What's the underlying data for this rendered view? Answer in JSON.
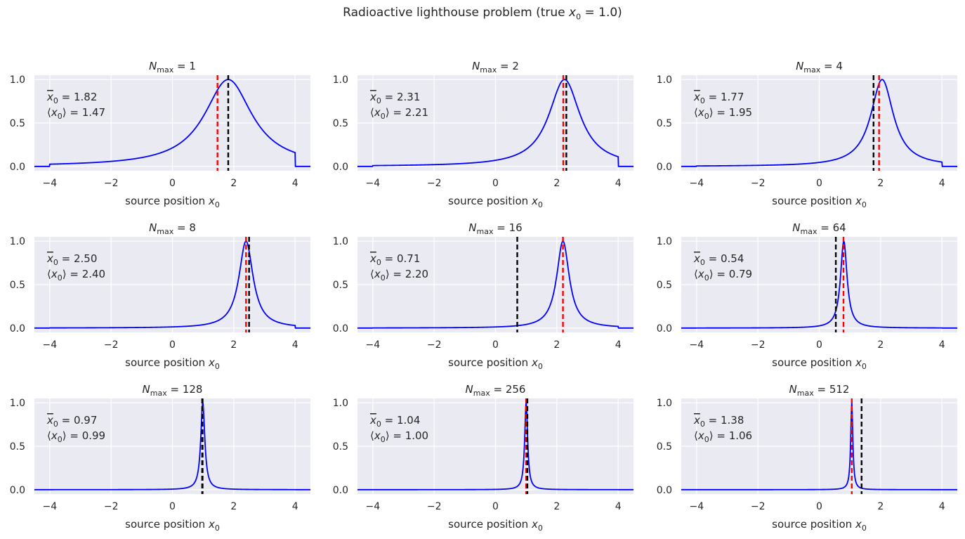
{
  "figure": {
    "title_prefix": "Radioactive lighthouse problem (true ",
    "title_var": "x",
    "title_sub": "0",
    "title_suffix": " = 1.0)"
  },
  "colors": {
    "background": "#eaeaf2",
    "grid": "#ffffff",
    "posterior": "#0000ff",
    "mean_line": "#000000",
    "expectation_line": "#ff0000"
  },
  "chart_data": [
    {
      "type": "line",
      "n_max": "1",
      "title_var": "N",
      "title_sub": "max",
      "title_eq": " = 1",
      "xbar": 1.82,
      "expect": 1.47,
      "xbar_text": "= 1.82",
      "expect_text": "= 1.47",
      "peak": 1.82,
      "width": 0.95,
      "support": [
        -4,
        4
      ],
      "xlim": [
        -4.5,
        4.5
      ],
      "ylim": [
        -0.05,
        1.05
      ],
      "xticks": [
        "−4",
        "−2",
        "0",
        "2",
        "4"
      ],
      "xtick_values": [
        -4,
        -2,
        0,
        2,
        4
      ],
      "yticks": [
        "0.0",
        "0.5",
        "1.0"
      ],
      "ytick_values": [
        0,
        0.5,
        1
      ],
      "xlabel_text": "source position ",
      "xlabel_var": "x",
      "xlabel_sub": "0"
    },
    {
      "type": "line",
      "n_max": "2",
      "title_var": "N",
      "title_sub": "max",
      "title_eq": " = 2",
      "xbar": 2.31,
      "expect": 2.21,
      "xbar_text": "= 2.31",
      "expect_text": "= 2.21",
      "peak": 2.25,
      "width": 0.62,
      "support": [
        -4,
        4
      ],
      "xlim": [
        -4.5,
        4.5
      ],
      "ylim": [
        -0.05,
        1.05
      ],
      "xticks": [
        "−4",
        "−2",
        "0",
        "2",
        "4"
      ],
      "xtick_values": [
        -4,
        -2,
        0,
        2,
        4
      ],
      "yticks": [
        "0.0",
        "0.5",
        "1.0"
      ],
      "ytick_values": [
        0,
        0.5,
        1
      ],
      "xlabel_text": "source position ",
      "xlabel_var": "x",
      "xlabel_sub": "0"
    },
    {
      "type": "line",
      "n_max": "4",
      "title_var": "N",
      "title_sub": "max",
      "title_eq": " = 4",
      "xbar": 1.77,
      "expect": 1.95,
      "xbar_text": "= 1.77",
      "expect_text": "= 1.95",
      "peak": 2.05,
      "width": 0.45,
      "support": [
        -4,
        4
      ],
      "xlim": [
        -4.5,
        4.5
      ],
      "ylim": [
        -0.05,
        1.05
      ],
      "xticks": [
        "−4",
        "−2",
        "0",
        "2",
        "4"
      ],
      "xtick_values": [
        -4,
        -2,
        0,
        2,
        4
      ],
      "yticks": [
        "0.0",
        "0.5",
        "1.0"
      ],
      "ytick_values": [
        0,
        0.5,
        1
      ],
      "xlabel_text": "source position ",
      "xlabel_var": "x",
      "xlabel_sub": "0"
    },
    {
      "type": "line",
      "n_max": "8",
      "title_var": "N",
      "title_sub": "max",
      "title_eq": " = 8",
      "xbar": 2.5,
      "expect": 2.4,
      "xbar_text": "= 2.50",
      "expect_text": "= 2.40",
      "peak": 2.4,
      "width": 0.28,
      "support": [
        -4,
        4
      ],
      "xlim": [
        -4.5,
        4.5
      ],
      "ylim": [
        -0.05,
        1.05
      ],
      "xticks": [
        "−4",
        "−2",
        "0",
        "2",
        "4"
      ],
      "xtick_values": [
        -4,
        -2,
        0,
        2,
        4
      ],
      "yticks": [
        "0.0",
        "0.5",
        "1.0"
      ],
      "ytick_values": [
        0,
        0.5,
        1
      ],
      "xlabel_text": "source position ",
      "xlabel_var": "x",
      "xlabel_sub": "0"
    },
    {
      "type": "line",
      "n_max": "16",
      "title_var": "N",
      "title_sub": "max",
      "title_eq": " = 16",
      "xbar": 0.71,
      "expect": 2.2,
      "xbar_text": "= 0.71",
      "expect_text": "= 2.20",
      "peak": 2.2,
      "width": 0.25,
      "support": [
        -4,
        4
      ],
      "xlim": [
        -4.5,
        4.5
      ],
      "ylim": [
        -0.05,
        1.05
      ],
      "xticks": [
        "−4",
        "−2",
        "0",
        "2",
        "4"
      ],
      "xtick_values": [
        -4,
        -2,
        0,
        2,
        4
      ],
      "yticks": [
        "0.0",
        "0.5",
        "1.0"
      ],
      "ytick_values": [
        0,
        0.5,
        1
      ],
      "xlabel_text": "source position ",
      "xlabel_var": "x",
      "xlabel_sub": "0"
    },
    {
      "type": "line",
      "n_max": "64",
      "title_var": "N",
      "title_sub": "max",
      "title_eq": " = 64",
      "xbar": 0.54,
      "expect": 0.79,
      "xbar_text": "= 0.54",
      "expect_text": "= 0.79",
      "peak": 0.8,
      "width": 0.13,
      "support": [
        -4,
        4
      ],
      "xlim": [
        -4.5,
        4.5
      ],
      "ylim": [
        -0.05,
        1.05
      ],
      "xticks": [
        "−4",
        "−2",
        "0",
        "2",
        "4"
      ],
      "xtick_values": [
        -4,
        -2,
        0,
        2,
        4
      ],
      "yticks": [
        "0.0",
        "0.5",
        "1.0"
      ],
      "ytick_values": [
        0,
        0.5,
        1
      ],
      "xlabel_text": "source position ",
      "xlabel_var": "x",
      "xlabel_sub": "0"
    },
    {
      "type": "line",
      "n_max": "128",
      "title_var": "N",
      "title_sub": "max",
      "title_eq": " = 128",
      "xbar": 0.97,
      "expect": 0.99,
      "xbar_text": "= 0.97",
      "expect_text": "= 0.99",
      "peak": 0.99,
      "width": 0.08,
      "support": [
        -4,
        4
      ],
      "xlim": [
        -4.5,
        4.5
      ],
      "ylim": [
        -0.05,
        1.05
      ],
      "xticks": [
        "−4",
        "−2",
        "0",
        "2",
        "4"
      ],
      "xtick_values": [
        -4,
        -2,
        0,
        2,
        4
      ],
      "yticks": [
        "0.0",
        "0.5",
        "1.0"
      ],
      "ytick_values": [
        0,
        0.5,
        1
      ],
      "xlabel_text": "source position ",
      "xlabel_var": "x",
      "xlabel_sub": "0"
    },
    {
      "type": "line",
      "n_max": "256",
      "title_var": "N",
      "title_sub": "max",
      "title_eq": " = 256",
      "xbar": 1.04,
      "expect": 1.0,
      "xbar_text": "= 1.04",
      "expect_text": "= 1.00",
      "peak": 1.0,
      "width": 0.058,
      "support": [
        -4,
        4
      ],
      "xlim": [
        -4.5,
        4.5
      ],
      "ylim": [
        -0.05,
        1.05
      ],
      "xticks": [
        "−4",
        "−2",
        "0",
        "2",
        "4"
      ],
      "xtick_values": [
        -4,
        -2,
        0,
        2,
        4
      ],
      "yticks": [
        "0.0",
        "0.5",
        "1.0"
      ],
      "ytick_values": [
        0,
        0.5,
        1
      ],
      "xlabel_text": "source position ",
      "xlabel_var": "x",
      "xlabel_sub": "0"
    },
    {
      "type": "line",
      "n_max": "512",
      "title_var": "N",
      "title_sub": "max",
      "title_eq": " = 512",
      "xbar": 1.38,
      "expect": 1.06,
      "xbar_text": "= 1.38",
      "expect_text": "= 1.06",
      "peak": 1.06,
      "width": 0.042,
      "support": [
        -4,
        4
      ],
      "xlim": [
        -4.5,
        4.5
      ],
      "ylim": [
        -0.05,
        1.05
      ],
      "xticks": [
        "−4",
        "−2",
        "0",
        "2",
        "4"
      ],
      "xtick_values": [
        -4,
        -2,
        0,
        2,
        4
      ],
      "yticks": [
        "0.0",
        "0.5",
        "1.0"
      ],
      "ytick_values": [
        0,
        0.5,
        1
      ],
      "xlabel_text": "source position ",
      "xlabel_var": "x",
      "xlabel_sub": "0"
    }
  ]
}
